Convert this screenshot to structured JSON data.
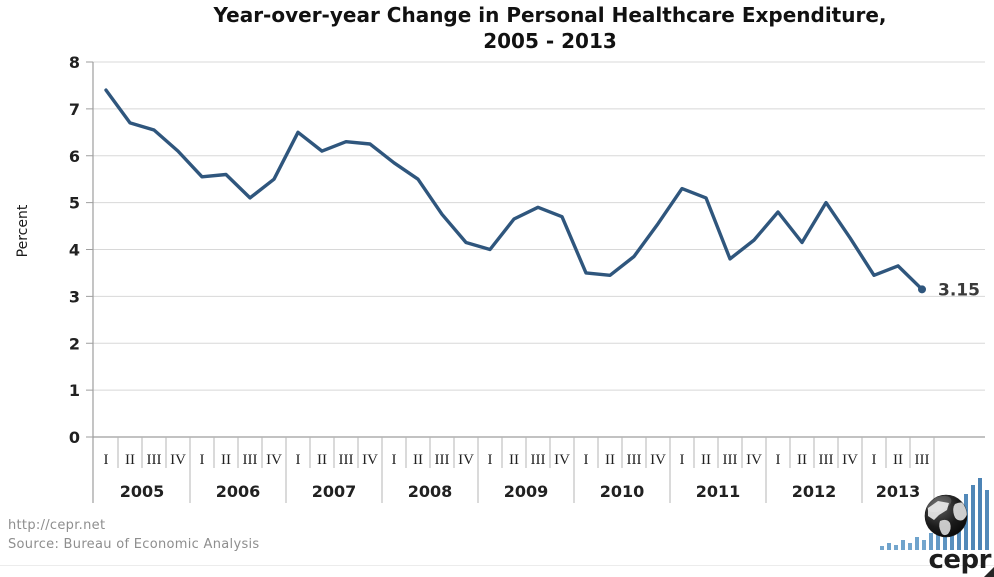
{
  "title": {
    "line1": "Year-over-year Change in Personal Healthcare Expenditure,",
    "line2": "2005 - 2013"
  },
  "footer": {
    "url": "http://cepr.net",
    "source": "Source: Bureau of Economic Analysis"
  },
  "logo": {
    "text": "cepr"
  },
  "chart_data": {
    "type": "line",
    "title": "Year-over-year Change in Personal Healthcare Expenditure, 2005 - 2013",
    "xlabel": "",
    "ylabel": "Percent",
    "ylim": [
      0,
      8
    ],
    "yticks": [
      0,
      1,
      2,
      3,
      4,
      5,
      6,
      7,
      8
    ],
    "grid": true,
    "legend": "none",
    "line_color": "#2f567d",
    "end_label": "3.15",
    "series_name": "Year-over-year change in personal healthcare expenditure (percent)",
    "years": [
      {
        "label": "2005",
        "quarters": [
          "I",
          "II",
          "III",
          "IV"
        ],
        "values": [
          7.4,
          6.7,
          6.55,
          6.1
        ]
      },
      {
        "label": "2006",
        "quarters": [
          "I",
          "II",
          "III",
          "IV"
        ],
        "values": [
          5.55,
          5.6,
          5.1,
          5.5
        ]
      },
      {
        "label": "2007",
        "quarters": [
          "I",
          "II",
          "III",
          "IV"
        ],
        "values": [
          6.5,
          6.1,
          6.3,
          6.25
        ]
      },
      {
        "label": "2008",
        "quarters": [
          "I",
          "II",
          "III",
          "IV"
        ],
        "values": [
          5.85,
          5.5,
          4.75,
          4.15
        ]
      },
      {
        "label": "2009",
        "quarters": [
          "I",
          "II",
          "III",
          "IV"
        ],
        "values": [
          4.0,
          4.65,
          4.9,
          4.7
        ]
      },
      {
        "label": "2010",
        "quarters": [
          "I",
          "II",
          "III",
          "IV"
        ],
        "values": [
          3.5,
          3.45,
          3.85,
          4.55
        ]
      },
      {
        "label": "2011",
        "quarters": [
          "I",
          "II",
          "III",
          "IV"
        ],
        "values": [
          5.3,
          5.1,
          3.8,
          4.2
        ]
      },
      {
        "label": "2012",
        "quarters": [
          "I",
          "II",
          "III",
          "IV"
        ],
        "values": [
          4.8,
          4.15,
          5.0,
          4.25
        ]
      },
      {
        "label": "2013",
        "quarters": [
          "I",
          "II",
          "III"
        ],
        "values": [
          3.45,
          3.65,
          3.15
        ]
      }
    ]
  }
}
